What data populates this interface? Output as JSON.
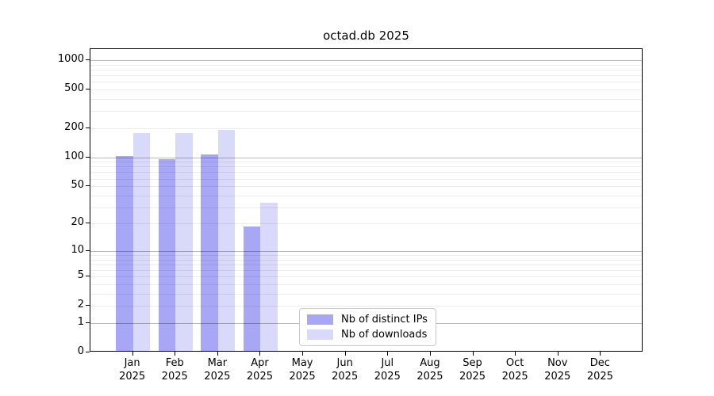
{
  "chart_data": {
    "type": "bar",
    "title": "octad.db 2025",
    "categories": [
      "Jan",
      "Feb",
      "Mar",
      "Apr",
      "May",
      "Jun",
      "Jul",
      "Aug",
      "Sep",
      "Oct",
      "Nov",
      "Dec"
    ],
    "x_year_label": "2025",
    "series": [
      {
        "name": "Nb of distinct IPs",
        "color": "#a7a7f6",
        "values": [
          100,
          93,
          103,
          18,
          0,
          0,
          0,
          0,
          0,
          0,
          0,
          0
        ]
      },
      {
        "name": "Nb of downloads",
        "color": "#d9d9f9",
        "values": [
          172,
          172,
          187,
          32,
          0,
          0,
          0,
          0,
          0,
          0,
          0,
          0
        ]
      }
    ],
    "yscale": "log1p",
    "yticks": [
      0,
      1,
      2,
      5,
      10,
      20,
      50,
      100,
      200,
      500,
      1000
    ],
    "ylim": [
      0,
      1306
    ],
    "grid": true,
    "legend_position": "lower-center",
    "colors": {
      "grid_major": "rgba(0,0,0,0.28)",
      "grid_minor": "rgba(0,0,0,0.075)",
      "axis": "#000000",
      "text": "#000000",
      "background": "#ffffff"
    }
  }
}
